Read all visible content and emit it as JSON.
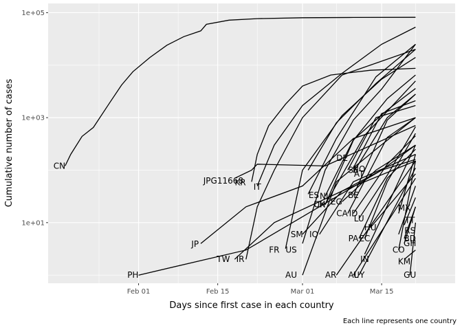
{
  "chart_data": {
    "type": "line",
    "xlabel": "Days since first case in each country",
    "ylabel": "Cumulative number of cases",
    "caption": "Each line represents one country",
    "y_scale": "log10",
    "ylim": [
      0.7,
      150000
    ],
    "xlim": [
      "2020-01-16",
      "2020-03-28"
    ],
    "x_ticks": [
      {
        "label": "Feb 01",
        "date": "2020-02-01"
      },
      {
        "label": "Feb 15",
        "date": "2020-02-15"
      },
      {
        "label": "Mar 01",
        "date": "2020-03-01"
      },
      {
        "label": "Mar 15",
        "date": "2020-03-15"
      }
    ],
    "y_ticks": [
      {
        "label": "1e+01",
        "value": 10
      },
      {
        "label": "1e+03",
        "value": 1000
      },
      {
        "label": "1e+05",
        "value": 100000
      }
    ],
    "grid": true,
    "series": [
      {
        "name": "CN",
        "label_at": [
          "2020-01-18",
          120
        ],
        "points": [
          [
            "2020-01-19",
            120
          ],
          [
            "2020-01-20",
            200
          ],
          [
            "2020-01-22",
            440
          ],
          [
            "2020-01-24",
            650
          ],
          [
            "2020-01-27",
            2000
          ],
          [
            "2020-01-29",
            4200
          ],
          [
            "2020-01-31",
            7500
          ],
          [
            "2020-02-03",
            14000
          ],
          [
            "2020-02-06",
            24000
          ],
          [
            "2020-02-09",
            35000
          ],
          [
            "2020-02-12",
            45000
          ],
          [
            "2020-02-13",
            60000
          ],
          [
            "2020-02-17",
            72000
          ],
          [
            "2020-02-22",
            77000
          ],
          [
            "2020-03-01",
            80000
          ],
          [
            "2020-03-10",
            81000
          ],
          [
            "2020-03-21",
            81500
          ]
        ]
      },
      {
        "name": "JP",
        "label_at": [
          "2020-02-11",
          3.9
        ],
        "points": [
          [
            "2020-02-12",
            4
          ],
          [
            "2020-02-20",
            20
          ],
          [
            "2020-03-01",
            50
          ],
          [
            "2020-03-10",
            400
          ],
          [
            "2020-03-21",
            1000
          ]
        ]
      },
      {
        "name": "JPG11668",
        "label_at": [
          "2020-02-16",
          63
        ],
        "points": [
          [
            "2020-02-18",
            70
          ],
          [
            "2020-02-21",
            100
          ],
          [
            "2020-02-22",
            130
          ],
          [
            "2020-03-05",
            120
          ],
          [
            "2020-03-21",
            710
          ]
        ]
      },
      {
        "name": "KR",
        "label_at": [
          "2020-02-19",
          58
        ],
        "points": [
          [
            "2020-02-21",
            60
          ],
          [
            "2020-02-22",
            200
          ],
          [
            "2020-02-24",
            700
          ],
          [
            "2020-02-27",
            1800
          ],
          [
            "2020-03-01",
            4000
          ],
          [
            "2020-03-06",
            6500
          ],
          [
            "2020-03-13",
            8000
          ],
          [
            "2020-03-21",
            8700
          ]
        ]
      },
      {
        "name": "IT",
        "label_at": [
          "2020-02-22",
          48
        ],
        "points": [
          [
            "2020-02-22",
            50
          ],
          [
            "2020-02-25",
            300
          ],
          [
            "2020-03-01",
            1700
          ],
          [
            "2020-03-08",
            7000
          ],
          [
            "2020-03-15",
            25000
          ],
          [
            "2020-03-21",
            53000
          ]
        ]
      },
      {
        "name": "TW",
        "label_at": [
          "2020-02-16",
          2
        ],
        "points": [
          [
            "2020-02-18",
            2
          ],
          [
            "2020-02-25",
            10
          ],
          [
            "2020-03-08",
            40
          ],
          [
            "2020-03-21",
            150
          ]
        ]
      },
      {
        "name": "IR",
        "label_at": [
          "2020-02-19",
          2
        ],
        "points": [
          [
            "2020-02-20",
            2
          ],
          [
            "2020-02-22",
            20
          ],
          [
            "2020-02-25",
            100
          ],
          [
            "2020-03-01",
            1000
          ],
          [
            "2020-03-08",
            6500
          ],
          [
            "2020-03-21",
            20000
          ]
        ]
      },
      {
        "name": "PH",
        "label_at": [
          "2020-01-31",
          1
        ],
        "points": [
          [
            "2020-02-01",
            1
          ],
          [
            "2020-02-20",
            3
          ],
          [
            "2020-03-15",
            100
          ],
          [
            "2020-03-21",
            300
          ]
        ]
      },
      {
        "name": "FR",
        "label_at": [
          "2020-02-25",
          3
        ],
        "points": [
          [
            "2020-02-27",
            3.2
          ],
          [
            "2020-03-01",
            100
          ],
          [
            "2020-03-08",
            1100
          ],
          [
            "2020-03-15",
            5400
          ],
          [
            "2020-03-21",
            14000
          ]
        ]
      },
      {
        "name": "US",
        "label_at": [
          "2020-02-28",
          3
        ],
        "points": [
          [
            "2020-03-01",
            4
          ],
          [
            "2020-03-05",
            100
          ],
          [
            "2020-03-10",
            900
          ],
          [
            "2020-03-15",
            3500
          ],
          [
            "2020-03-21",
            25000
          ]
        ]
      },
      {
        "name": "AU",
        "label_at": [
          "2020-02-28",
          1
        ],
        "points": [
          [
            "2020-03-01",
            1
          ],
          [
            "2020-03-07",
            60
          ],
          [
            "2020-03-14",
            250
          ],
          [
            "2020-03-21",
            1000
          ]
        ]
      },
      {
        "name": "SM",
        "label_at": [
          "2020-02-29",
          6
        ],
        "points": [
          [
            "2020-03-01",
            6
          ],
          [
            "2020-03-08",
            40
          ],
          [
            "2020-03-15",
            100
          ],
          [
            "2020-03-21",
            160
          ]
        ]
      },
      {
        "name": "IQ",
        "label_at": [
          "2020-03-03",
          6
        ],
        "points": [
          [
            "2020-03-04",
            6
          ],
          [
            "2020-03-10",
            60
          ],
          [
            "2020-03-21",
            200
          ]
        ]
      },
      {
        "name": "ES",
        "label_at": [
          "2020-03-03",
          33
        ],
        "points": [
          [
            "2020-03-02",
            35
          ],
          [
            "2020-03-07",
            400
          ],
          [
            "2020-03-14",
            6000
          ],
          [
            "2020-03-21",
            25000
          ]
        ]
      },
      {
        "name": "NL",
        "label_at": [
          "2020-03-05",
          32
        ],
        "points": [
          [
            "2020-03-05",
            32
          ],
          [
            "2020-03-10",
            380
          ],
          [
            "2020-03-16",
            1400
          ],
          [
            "2020-03-21",
            3600
          ]
        ]
      },
      {
        "name": "CH",
        "label_at": [
          "2020-03-04",
          22
        ],
        "points": [
          [
            "2020-03-05",
            22
          ],
          [
            "2020-03-10",
            370
          ],
          [
            "2020-03-16",
            2300
          ],
          [
            "2020-03-21",
            6500
          ]
        ]
      },
      {
        "name": "UK",
        "label_at": [
          "2020-03-04",
          22
        ],
        "points": [
          [
            "2020-03-05",
            22
          ],
          [
            "2020-03-12",
            460
          ],
          [
            "2020-03-21",
            5000
          ]
        ]
      },
      {
        "name": "EG",
        "label_at": [
          "2020-03-07",
          25
        ],
        "points": [
          [
            "2020-03-08",
            25
          ],
          [
            "2020-03-14",
            100
          ],
          [
            "2020-03-21",
            300
          ]
        ]
      },
      {
        "name": "DE",
        "label_at": [
          "2020-03-08",
          170
        ],
        "points": [
          [
            "2020-03-02",
            100
          ],
          [
            "2020-03-07",
            800
          ],
          [
            "2020-03-14",
            4500
          ],
          [
            "2020-03-21",
            20000
          ]
        ]
      },
      {
        "name": "SE",
        "label_at": [
          "2020-03-10",
          100
        ],
        "points": [
          [
            "2020-03-09",
            100
          ],
          [
            "2020-03-14",
            1000
          ],
          [
            "2020-03-21",
            1700
          ]
        ]
      },
      {
        "name": "NO",
        "label_at": [
          "2020-03-11",
          105
        ],
        "points": [
          [
            "2020-03-10",
            110
          ],
          [
            "2020-03-15",
            1200
          ],
          [
            "2020-03-21",
            2100
          ]
        ]
      },
      {
        "name": "AT",
        "label_at": [
          "2020-03-11",
          85
        ],
        "points": [
          [
            "2020-03-10",
            90
          ],
          [
            "2020-03-16",
            1000
          ],
          [
            "2020-03-21",
            2800
          ]
        ]
      },
      {
        "name": "BE",
        "label_at": [
          "2020-03-10",
          33
        ],
        "points": [
          [
            "2020-03-10",
            33
          ],
          [
            "2020-03-16",
            900
          ],
          [
            "2020-03-21",
            2800
          ]
        ]
      },
      {
        "name": "CA",
        "label_at": [
          "2020-03-08",
          15
        ],
        "points": [
          [
            "2020-03-09",
            15
          ],
          [
            "2020-03-16",
            420
          ],
          [
            "2020-03-21",
            1000
          ]
        ]
      },
      {
        "name": "ID",
        "label_at": [
          "2020-03-10",
          15
        ],
        "points": [
          [
            "2020-03-10",
            15
          ],
          [
            "2020-03-16",
            130
          ],
          [
            "2020-03-21",
            450
          ]
        ]
      },
      {
        "name": "LU",
        "label_at": [
          "2020-03-11",
          12
        ],
        "points": [
          [
            "2020-03-11",
            12
          ],
          [
            "2020-03-16",
            80
          ],
          [
            "2020-03-21",
            670
          ]
        ]
      },
      {
        "name": "HU",
        "label_at": [
          "2020-03-13",
          8
        ],
        "points": [
          [
            "2020-03-13",
            8
          ],
          [
            "2020-03-21",
            85
          ]
        ]
      },
      {
        "name": "PA",
        "label_at": [
          "2020-03-10",
          5
        ],
        "points": [
          [
            "2020-03-11",
            5
          ],
          [
            "2020-03-16",
            70
          ],
          [
            "2020-03-21",
            250
          ]
        ]
      },
      {
        "name": "EC",
        "label_at": [
          "2020-03-12",
          5
        ],
        "points": [
          [
            "2020-03-12",
            5
          ],
          [
            "2020-03-16",
            60
          ],
          [
            "2020-03-21",
            500
          ]
        ]
      },
      {
        "name": "IN",
        "label_at": [
          "2020-03-12",
          2
        ],
        "points": [
          [
            "2020-03-12",
            2.5
          ],
          [
            "2020-03-21",
            300
          ]
        ]
      },
      {
        "name": "AR",
        "label_at": [
          "2020-03-06",
          1
        ],
        "points": [
          [
            "2020-03-07",
            1
          ],
          [
            "2020-03-21",
            150
          ]
        ]
      },
      {
        "name": "AL",
        "label_at": [
          "2020-03-10",
          1
        ],
        "points": [
          [
            "2020-03-10",
            1
          ],
          [
            "2020-03-21",
            70
          ]
        ]
      },
      {
        "name": "UY",
        "label_at": [
          "2020-03-11",
          1
        ],
        "points": [
          [
            "2020-03-11",
            1
          ],
          [
            "2020-03-21",
            110
          ]
        ]
      },
      {
        "name": "MX",
        "label_at": [
          "2020-03-19",
          19
        ],
        "points": [
          [
            "2020-03-18",
            15
          ],
          [
            "2020-03-21",
            200
          ]
        ]
      },
      {
        "name": "RS",
        "label_at": [
          "2020-03-20",
          7
        ],
        "points": [
          [
            "2020-03-18",
            6
          ],
          [
            "2020-03-21",
            50
          ]
        ]
      },
      {
        "name": "CO",
        "label_at": [
          "2020-03-18",
          3
        ],
        "points": [
          [
            "2020-03-18",
            3
          ],
          [
            "2020-03-21",
            150
          ]
        ]
      },
      {
        "name": "BD",
        "label_at": [
          "2020-03-20",
          5
        ],
        "points": [
          [
            "2020-03-19",
            5
          ],
          [
            "2020-03-21",
            20
          ]
        ]
      },
      {
        "name": "GH",
        "label_at": [
          "2020-03-20",
          4
        ],
        "points": [
          [
            "2020-03-19",
            4
          ],
          [
            "2020-03-21",
            20
          ]
        ]
      },
      {
        "name": "KM",
        "label_at": [
          "2020-03-19",
          1.8
        ],
        "points": [
          [
            "2020-03-19",
            2
          ],
          [
            "2020-03-21",
            3
          ]
        ]
      },
      {
        "name": "GU",
        "label_at": [
          "2020-03-20",
          1
        ],
        "points": [
          [
            "2020-03-20",
            1
          ],
          [
            "2020-03-21",
            10
          ]
        ]
      },
      {
        "name": "TT",
        "label_at": [
          "2020-03-20",
          11
        ],
        "points": [
          [
            "2020-03-19",
            9
          ],
          [
            "2020-03-21",
            30
          ]
        ]
      }
    ]
  }
}
